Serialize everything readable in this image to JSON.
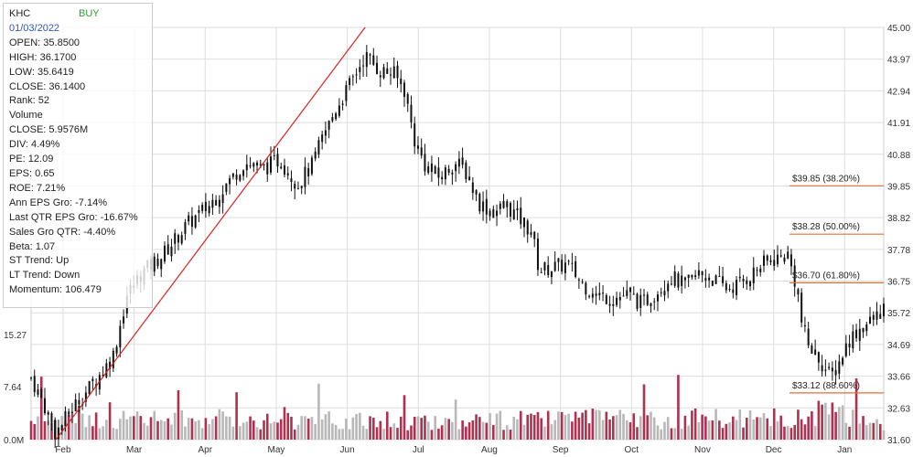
{
  "info": {
    "ticker": "KHC",
    "signal": "BUY",
    "date": "01/03/2022",
    "lines": [
      "OPEN: 35.8500",
      "HIGH: 36.1700",
      "LOW: 35.6419",
      "CLOSE: 36.1400",
      "Rank: 52",
      "Volume",
      "CLOSE: 5.9576M",
      "DIV: 4.49%",
      "PE: 12.09",
      "EPS: 0.65",
      "ROE: 7.21%",
      "Ann EPS Gro: -7.14%",
      "Last QTR EPS Gro: -16.67%",
      "Sales Gro QTR: -4.40%",
      "Beta: 1.07",
      "ST Trend: Up",
      "LT Trend: Down",
      "Momentum: 106.479"
    ]
  },
  "colors": {
    "candle": "#111111",
    "volume_up": "#b8b8b8",
    "volume_down": "#b03050",
    "trendline": "#dd2222",
    "fib": "#e07030",
    "grid": "#dddddd"
  },
  "chart_data": {
    "type": "candlestick",
    "ylim": [
      31.6,
      45.0
    ],
    "y_ticks": [
      "45.00",
      "43.97",
      "42.94",
      "41.91",
      "40.88",
      "39.85",
      "38.82",
      "37.78",
      "36.75",
      "35.72",
      "34.69",
      "33.66",
      "32.63",
      "31.60"
    ],
    "volume_ticks": [
      "15.27",
      "7.64",
      "0.0M"
    ],
    "volume_ylim": [
      0,
      25
    ],
    "x_tick_labels": [
      "Feb",
      "Mar",
      "Apr",
      "May",
      "Jun",
      "Jul",
      "Aug",
      "Sep",
      "Oct",
      "Nov",
      "Dec",
      "Jan"
    ],
    "x_range_months": [
      0.0,
      12.0
    ],
    "fib_levels": [
      {
        "label": "$39.85 (38.20%)",
        "value": 39.85
      },
      {
        "label": "$38.28 (50.00%)",
        "value": 38.28
      },
      {
        "label": "$36.70 (61.80%)",
        "value": 36.7
      },
      {
        "label": "$33.12 (88.60%)",
        "value": 33.12
      }
    ],
    "trendline": {
      "start": {
        "month": 0.35,
        "price": 31.6
      },
      "end": {
        "month": 4.7,
        "price": 45.0
      }
    },
    "price_path": [
      [
        0.0,
        33.6
      ],
      [
        0.15,
        32.9
      ],
      [
        0.35,
        31.8
      ],
      [
        0.6,
        32.7
      ],
      [
        0.9,
        33.5
      ],
      [
        1.15,
        34.3
      ],
      [
        1.35,
        36.3
      ],
      [
        1.55,
        37.0
      ],
      [
        1.85,
        37.6
      ],
      [
        2.2,
        38.6
      ],
      [
        2.5,
        39.2
      ],
      [
        2.75,
        39.9
      ],
      [
        3.0,
        40.6
      ],
      [
        3.25,
        40.4
      ],
      [
        3.5,
        40.7
      ],
      [
        3.75,
        39.9
      ],
      [
        3.95,
        40.5
      ],
      [
        4.1,
        41.4
      ],
      [
        4.3,
        42.4
      ],
      [
        4.5,
        43.2
      ],
      [
        4.7,
        44.1
      ],
      [
        4.9,
        43.6
      ],
      [
        5.1,
        43.5
      ],
      [
        5.25,
        43.0
      ],
      [
        5.4,
        41.3
      ],
      [
        5.55,
        40.5
      ],
      [
        5.75,
        40.1
      ],
      [
        5.95,
        40.6
      ],
      [
        6.1,
        40.4
      ],
      [
        6.3,
        39.3
      ],
      [
        6.5,
        39.0
      ],
      [
        6.7,
        39.2
      ],
      [
        6.95,
        38.6
      ],
      [
        7.05,
        38.3
      ],
      [
        7.15,
        37.1
      ],
      [
        7.35,
        37.2
      ],
      [
        7.55,
        37.3
      ],
      [
        7.75,
        36.7
      ],
      [
        7.95,
        36.3
      ],
      [
        8.2,
        36.2
      ],
      [
        8.4,
        36.3
      ],
      [
        8.6,
        36.0
      ],
      [
        8.8,
        36.4
      ],
      [
        9.0,
        36.9
      ],
      [
        9.2,
        36.6
      ],
      [
        9.4,
        37.0
      ],
      [
        9.6,
        36.8
      ],
      [
        9.8,
        36.5
      ],
      [
        10.0,
        36.7
      ],
      [
        10.15,
        37.0
      ],
      [
        10.3,
        37.3
      ],
      [
        10.5,
        37.5
      ],
      [
        10.65,
        37.6
      ],
      [
        10.78,
        36.5
      ],
      [
        10.85,
        35.3
      ],
      [
        10.95,
        34.6
      ],
      [
        11.1,
        34.2
      ],
      [
        11.25,
        33.6
      ],
      [
        11.35,
        34.0
      ],
      [
        11.5,
        34.8
      ],
      [
        11.65,
        35.2
      ],
      [
        11.8,
        35.4
      ],
      [
        11.9,
        35.6
      ],
      [
        12.0,
        35.9
      ]
    ],
    "volume_levels": [
      {
        "month": 0.0,
        "value": 3.4
      },
      {
        "month": 3.0,
        "value": 3.6
      },
      {
        "month": 5.0,
        "value": 3.0
      },
      {
        "month": 7.0,
        "value": 3.4
      },
      {
        "month": 10.7,
        "value": 3.6
      },
      {
        "month": 11.2,
        "value": 4.8
      },
      {
        "month": 12.0,
        "value": 3.0
      }
    ]
  }
}
